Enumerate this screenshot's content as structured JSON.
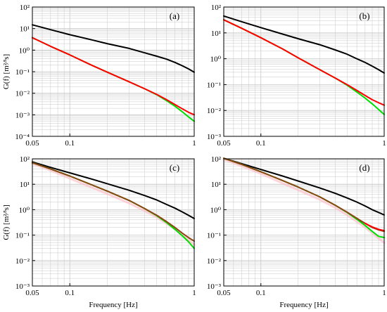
{
  "figure": {
    "xlabel": "Frequency [Hz]",
    "ylabel": "G(f)  [m²⁄³s]"
  },
  "colors": {
    "series_black": "#000000",
    "series_red": "#ff0000",
    "series_green": "#00dd00",
    "series_brown": "#8b4513",
    "series_pink": "#ffb6c1",
    "grid": "#c8c8c8",
    "frame": "#000000"
  },
  "chart_data": [
    {
      "type": "line",
      "panel": "(a)",
      "x_scale": "log",
      "y_scale": "log",
      "xlim": [
        0.05,
        1
      ],
      "ylim": [
        0.0001,
        100
      ],
      "x_ticks": [
        "0.05",
        "0.1",
        "1"
      ],
      "y_ticks": [
        "10⁻⁴",
        "10⁻³",
        "10⁻²",
        "10⁻¹",
        "10⁰",
        "10¹",
        "10²"
      ],
      "grid": true,
      "series": [
        {
          "color_key": "series_black",
          "x": [
            0.05,
            0.07,
            0.1,
            0.15,
            0.2,
            0.3,
            0.4,
            0.5,
            0.6,
            0.7,
            0.8,
            0.9,
            1.0
          ],
          "y": [
            15,
            8.9,
            5.2,
            3.0,
            2.0,
            1.2,
            0.75,
            0.52,
            0.38,
            0.27,
            0.19,
            0.135,
            0.095
          ]
        },
        {
          "color_key": "series_green",
          "x": [
            0.05,
            0.07,
            0.1,
            0.15,
            0.2,
            0.3,
            0.4,
            0.5,
            0.6,
            0.7,
            0.8,
            0.9,
            1.0
          ],
          "y": [
            3.8,
            1.5,
            0.6,
            0.2,
            0.095,
            0.034,
            0.016,
            0.0085,
            0.0045,
            0.0025,
            0.0014,
            0.0008,
            0.0005
          ]
        },
        {
          "color_key": "series_red",
          "x": [
            0.05,
            0.07,
            0.1,
            0.15,
            0.2,
            0.3,
            0.4,
            0.5,
            0.6,
            0.7,
            0.8,
            0.9,
            1.0
          ],
          "y": [
            3.8,
            1.5,
            0.6,
            0.2,
            0.095,
            0.034,
            0.016,
            0.0088,
            0.005,
            0.003,
            0.0019,
            0.0013,
            0.001
          ]
        }
      ]
    },
    {
      "type": "line",
      "panel": "(b)",
      "x_scale": "log",
      "y_scale": "log",
      "xlim": [
        0.05,
        1
      ],
      "ylim": [
        0.001,
        100
      ],
      "x_ticks": [
        "0.05",
        "0.1",
        "1"
      ],
      "y_ticks": [
        "10⁻³",
        "10⁻²",
        "10⁻¹",
        "10⁰",
        "10¹",
        "10²"
      ],
      "grid": true,
      "series": [
        {
          "color_key": "series_black",
          "x": [
            0.05,
            0.07,
            0.1,
            0.15,
            0.2,
            0.3,
            0.4,
            0.5,
            0.6,
            0.7,
            0.8,
            0.9,
            1.0
          ],
          "y": [
            45,
            27,
            16,
            9,
            6,
            3.5,
            2.2,
            1.5,
            1.0,
            0.72,
            0.52,
            0.38,
            0.28
          ]
        },
        {
          "color_key": "series_green",
          "x": [
            0.05,
            0.07,
            0.1,
            0.15,
            0.2,
            0.3,
            0.4,
            0.5,
            0.6,
            0.7,
            0.8,
            0.9,
            1.0
          ],
          "y": [
            32,
            15,
            6.5,
            2.4,
            1.1,
            0.38,
            0.18,
            0.095,
            0.052,
            0.03,
            0.018,
            0.011,
            0.007
          ]
        },
        {
          "color_key": "series_red",
          "x": [
            0.05,
            0.07,
            0.1,
            0.15,
            0.2,
            0.3,
            0.4,
            0.5,
            0.6,
            0.7,
            0.8,
            0.9,
            1.0
          ],
          "y": [
            32,
            15,
            6.5,
            2.4,
            1.1,
            0.38,
            0.18,
            0.1,
            0.06,
            0.038,
            0.026,
            0.02,
            0.016
          ]
        }
      ]
    },
    {
      "type": "line",
      "panel": "(c)",
      "x_scale": "log",
      "y_scale": "log",
      "xlim": [
        0.05,
        1
      ],
      "ylim": [
        0.001,
        100
      ],
      "x_ticks": [
        "0.05",
        "0.1",
        "1"
      ],
      "y_ticks": [
        "10⁻³",
        "10⁻²",
        "10⁻¹",
        "10⁰",
        "10¹",
        "10²"
      ],
      "grid": true,
      "series": [
        {
          "color_key": "series_pink",
          "x": [
            0.05,
            0.07,
            0.1,
            0.15,
            0.2,
            0.3,
            0.4,
            0.5,
            0.6,
            0.7,
            0.8,
            0.9,
            1.0
          ],
          "y": [
            65,
            35,
            17,
            7.5,
            4.2,
            1.8,
            0.9,
            0.5,
            0.28,
            0.17,
            0.1,
            0.065,
            0.042
          ]
        },
        {
          "color_key": "series_black",
          "x": [
            0.05,
            0.07,
            0.1,
            0.15,
            0.2,
            0.3,
            0.4,
            0.5,
            0.6,
            0.7,
            0.8,
            0.9,
            1.0
          ],
          "y": [
            75,
            46,
            28,
            16,
            10.5,
            5.8,
            3.6,
            2.4,
            1.6,
            1.15,
            0.82,
            0.6,
            0.45
          ]
        },
        {
          "color_key": "series_green",
          "x": [
            0.05,
            0.07,
            0.1,
            0.15,
            0.2,
            0.3,
            0.4,
            0.5,
            0.6,
            0.7,
            0.8,
            0.9,
            1.0
          ],
          "y": [
            70,
            40,
            21,
            9.5,
            5.4,
            2.3,
            1.1,
            0.58,
            0.31,
            0.17,
            0.095,
            0.055,
            0.03
          ]
        },
        {
          "color_key": "series_brown",
          "x": [
            0.05,
            0.07,
            0.1,
            0.15,
            0.2,
            0.3,
            0.4,
            0.5,
            0.6,
            0.7,
            0.8,
            0.9,
            1.0
          ],
          "y": [
            70,
            40,
            21,
            9.5,
            5.4,
            2.3,
            1.1,
            0.6,
            0.34,
            0.2,
            0.12,
            0.08,
            0.058
          ]
        }
      ]
    },
    {
      "type": "line",
      "panel": "(d)",
      "x_scale": "log",
      "y_scale": "log",
      "xlim": [
        0.05,
        1
      ],
      "ylim": [
        0.001,
        100
      ],
      "x_ticks": [
        "0.05",
        "0.1",
        "1"
      ],
      "y_ticks": [
        "10⁻³",
        "10⁻²",
        "10⁻¹",
        "10⁰",
        "10¹",
        "10²"
      ],
      "grid": true,
      "series": [
        {
          "color_key": "series_pink",
          "x": [
            0.05,
            0.07,
            0.1,
            0.15,
            0.2,
            0.3,
            0.4,
            0.5,
            0.6,
            0.7,
            0.8,
            0.9,
            1.0
          ],
          "y": [
            95,
            52,
            26,
            11,
            6,
            2.5,
            1.2,
            0.62,
            0.34,
            0.2,
            0.12,
            0.075,
            0.05
          ]
        },
        {
          "color_key": "series_black",
          "x": [
            0.05,
            0.07,
            0.1,
            0.15,
            0.2,
            0.3,
            0.4,
            0.5,
            0.6,
            0.7,
            0.8,
            0.9,
            1.0
          ],
          "y": [
            105,
            64,
            38,
            21,
            13.5,
            7.2,
            4.4,
            2.9,
            2.0,
            1.4,
            1.0,
            0.78,
            0.62
          ]
        },
        {
          "color_key": "series_green",
          "x": [
            0.05,
            0.07,
            0.1,
            0.15,
            0.2,
            0.3,
            0.4,
            0.5,
            0.6,
            0.7,
            0.8,
            0.9,
            1.0
          ],
          "y": [
            105,
            60,
            31,
            14,
            7.8,
            3.2,
            1.5,
            0.78,
            0.42,
            0.24,
            0.14,
            0.09,
            0.08
          ]
        },
        {
          "color_key": "series_brown",
          "x": [
            0.05,
            0.07,
            0.1,
            0.15,
            0.2,
            0.3,
            0.4,
            0.5,
            0.6,
            0.7,
            0.8,
            0.9,
            1.0
          ],
          "y": [
            105,
            60,
            31,
            14,
            7.8,
            3.2,
            1.5,
            0.8,
            0.46,
            0.29,
            0.2,
            0.16,
            0.14
          ]
        },
        {
          "color_key": "series_red",
          "x": [
            0.7,
            0.8,
            0.9,
            1.0
          ],
          "y": [
            0.29,
            0.21,
            0.17,
            0.15
          ]
        }
      ]
    }
  ]
}
